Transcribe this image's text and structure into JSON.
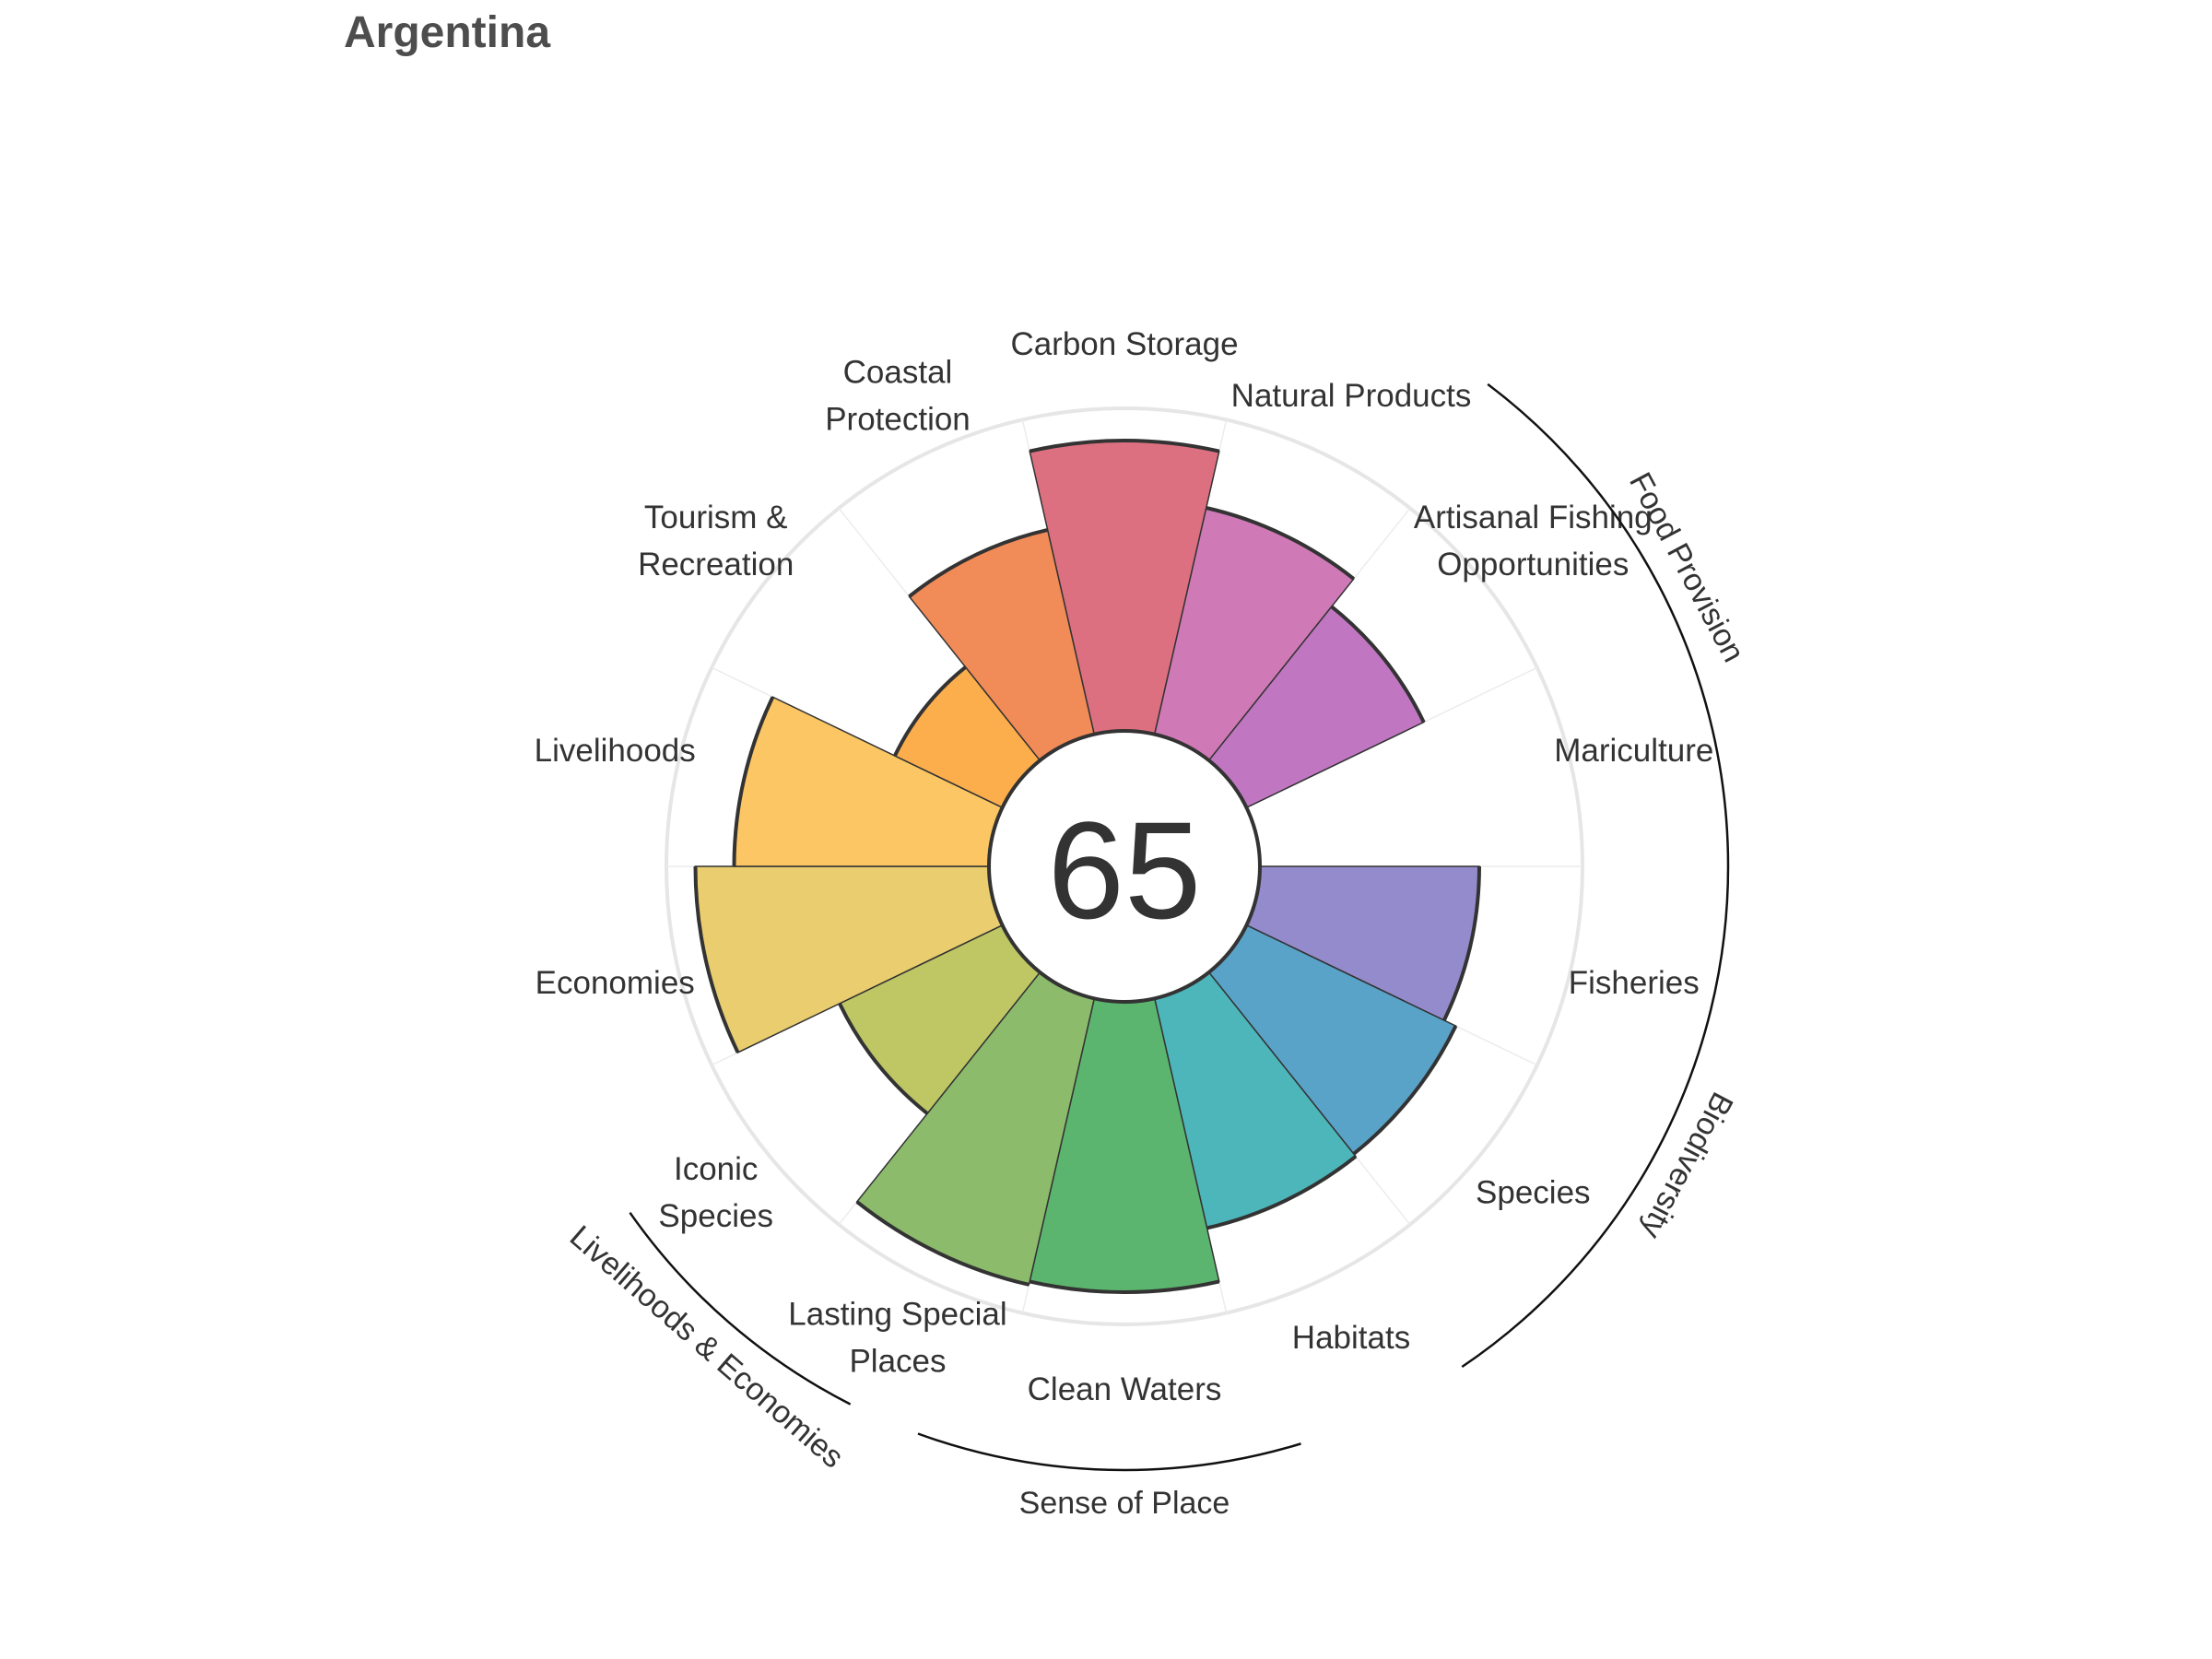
{
  "title": "Argentina",
  "chart_data": {
    "type": "polar-bar",
    "title": "Argentina",
    "score": 65,
    "score_text": "65",
    "scale_max": 100,
    "goals": [
      {
        "label_lines": [
          "Fisheries"
        ],
        "value": 68,
        "color": "#938bcb"
      },
      {
        "label_lines": [
          "Species"
        ],
        "value": 72,
        "color": "#59a2c8"
      },
      {
        "label_lines": [
          "Habitats"
        ],
        "value": 73,
        "color": "#4db6ba"
      },
      {
        "label_lines": [
          "Clean Waters"
        ],
        "value": 90,
        "color": "#5cb56e"
      },
      {
        "label_lines": [
          "Lasting Special",
          "Places"
        ],
        "value": 91,
        "color": "#8cbb6c"
      },
      {
        "label_lines": [
          "Iconic",
          "Species"
        ],
        "value": 56,
        "color": "#bec764"
      },
      {
        "label_lines": [
          "Economies"
        ],
        "value": 91,
        "color": "#e9cd6e"
      },
      {
        "label_lines": [
          "Livelihoods"
        ],
        "value": 79,
        "color": "#fbc663"
      },
      {
        "label_lines": [
          "Tourism &",
          "Recreation"
        ],
        "value": 37,
        "color": "#fdae4c"
      },
      {
        "label_lines": [
          "Coastal",
          "Protection"
        ],
        "value": 65,
        "color": "#f18b58"
      },
      {
        "label_lines": [
          "Carbon Storage"
        ],
        "value": 90,
        "color": "#dc7080"
      },
      {
        "label_lines": [
          "Natural Products"
        ],
        "value": 72,
        "color": "#cf79b7"
      },
      {
        "label_lines": [
          "Artisanal Fishing",
          "Opportunities"
        ],
        "value": 61,
        "color": "#c176c2"
      },
      {
        "label_lines": [
          "Mariculture"
        ],
        "value": 0,
        "color": "#a57cc6"
      }
    ],
    "groups": [
      {
        "label": "Food Provision"
      },
      {
        "label": "Biodiversity"
      },
      {
        "label": "Sense of Place"
      },
      {
        "label": "Livelihoods & Economies"
      }
    ],
    "grid": true
  }
}
